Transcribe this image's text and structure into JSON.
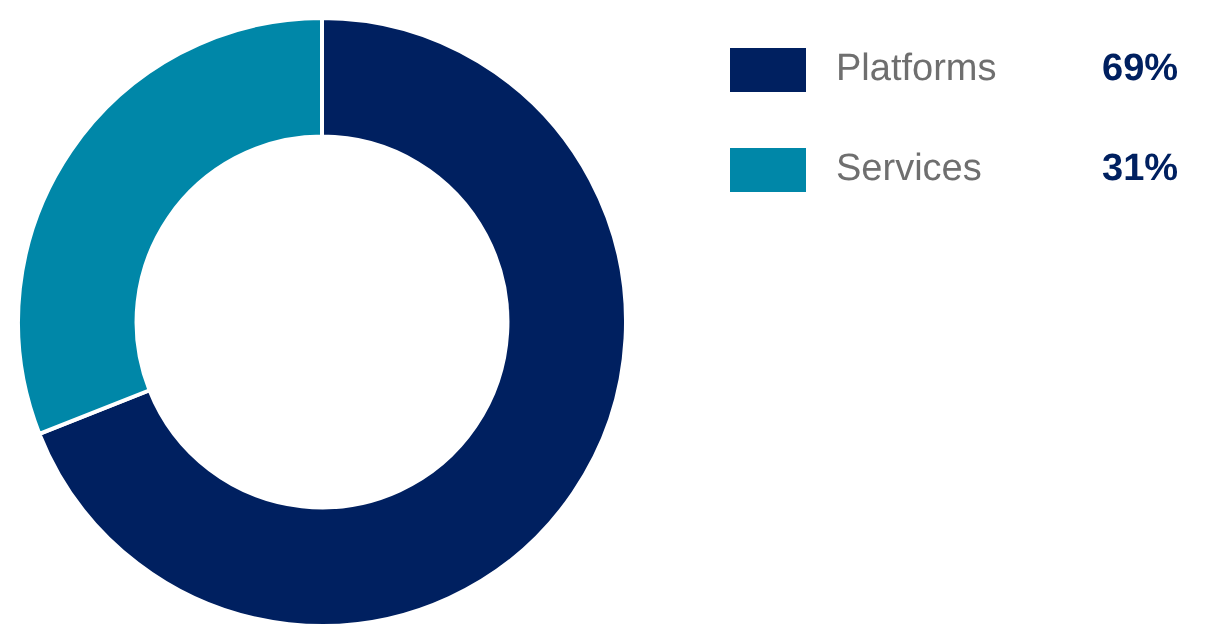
{
  "chart_data": {
    "type": "donut",
    "categories": [
      "Platforms",
      "Services"
    ],
    "values": [
      69,
      31
    ],
    "value_labels": [
      "69%",
      "31%"
    ],
    "colors": [
      "#002060",
      "#0087a8"
    ],
    "legend": "top right"
  }
}
